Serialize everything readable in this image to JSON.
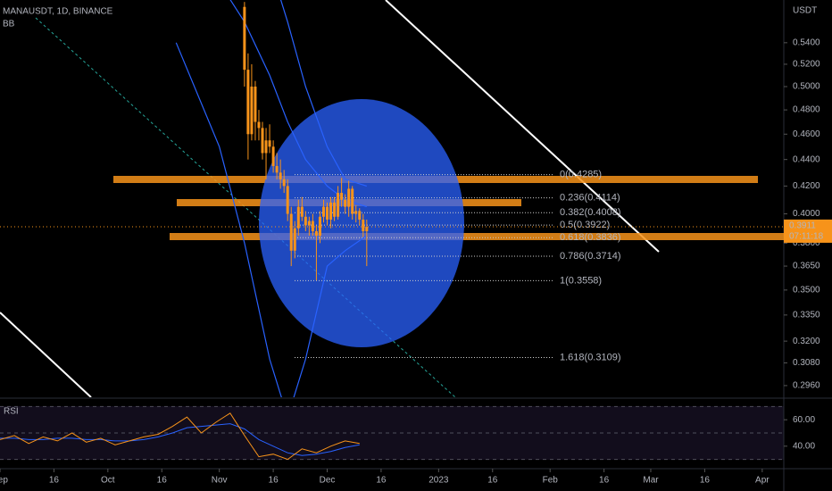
{
  "chart_data": {
    "type": "candlestick",
    "title": "MANAUSDT, 1D, BINANCE",
    "indicator": "BB",
    "currency": "USDT",
    "log_scale": true,
    "grid": false,
    "ylim": [
      0.29,
      0.582
    ],
    "yticks": [
      {
        "value": 0.54,
        "label": "0.5400"
      },
      {
        "value": 0.52,
        "label": "0.5200"
      },
      {
        "value": 0.5,
        "label": "0.5000"
      },
      {
        "value": 0.48,
        "label": "0.4800"
      },
      {
        "value": 0.46,
        "label": "0.4600"
      },
      {
        "value": 0.44,
        "label": "0.4400"
      },
      {
        "value": 0.42,
        "label": "0.4200"
      },
      {
        "value": 0.4,
        "label": "0.4000"
      },
      {
        "value": 0.38,
        "label": "0.3800"
      },
      {
        "value": 0.365,
        "label": "0.3650"
      },
      {
        "value": 0.35,
        "label": "0.3500"
      },
      {
        "value": 0.335,
        "label": "0.3350"
      },
      {
        "value": 0.32,
        "label": "0.3200"
      },
      {
        "value": 0.308,
        "label": "0.3080"
      },
      {
        "value": 0.296,
        "label": "0.2960"
      }
    ],
    "xlim": [
      "2022-09-01",
      "2023-04-07"
    ],
    "xticks": [
      {
        "value": "2022-09-01",
        "label": "Sep"
      },
      {
        "value": "2022-09-16",
        "label": "16"
      },
      {
        "value": "2022-10-01",
        "label": "Oct"
      },
      {
        "value": "2022-10-16",
        "label": "16"
      },
      {
        "value": "2022-11-01",
        "label": "Nov"
      },
      {
        "value": "2022-11-16",
        "label": "16"
      },
      {
        "value": "2022-12-01",
        "label": "Dec"
      },
      {
        "value": "2022-12-16",
        "label": "16"
      },
      {
        "value": "2023-01-01",
        "label": "2023"
      },
      {
        "value": "2023-01-16",
        "label": "16"
      },
      {
        "value": "2023-02-01",
        "label": "Feb"
      },
      {
        "value": "2023-02-16",
        "label": "16"
      },
      {
        "value": "2023-03-01",
        "label": "Mar"
      },
      {
        "value": "2023-03-16",
        "label": "16"
      },
      {
        "value": "2023-04-01",
        "label": "Apr"
      }
    ],
    "candles": {
      "color": "#f7931a",
      "x": [
        "2022-11-08",
        "2022-11-09",
        "2022-11-10",
        "2022-11-11",
        "2022-11-12",
        "2022-11-13",
        "2022-11-14",
        "2022-11-15",
        "2022-11-16",
        "2022-11-17",
        "2022-11-18",
        "2022-11-19",
        "2022-11-20",
        "2022-11-21",
        "2022-11-22",
        "2022-11-23",
        "2022-11-24",
        "2022-11-25",
        "2022-11-26",
        "2022-11-27",
        "2022-11-28",
        "2022-11-29",
        "2022-11-30",
        "2022-12-01",
        "2022-12-02",
        "2022-12-03",
        "2022-12-04",
        "2022-12-05",
        "2022-12-06",
        "2022-12-07",
        "2022-12-08",
        "2022-12-09",
        "2022-12-10",
        "2022-12-11",
        "2022-12-12"
      ],
      "open": [
        0.575,
        0.515,
        0.46,
        0.5,
        0.47,
        0.465,
        0.445,
        0.455,
        0.45,
        0.435,
        0.43,
        0.425,
        0.42,
        0.4,
        0.375,
        0.39,
        0.405,
        0.398,
        0.392,
        0.395,
        0.388,
        0.385,
        0.398,
        0.405,
        0.396,
        0.408,
        0.398,
        0.415,
        0.41,
        0.405,
        0.418,
        0.4,
        0.402,
        0.396,
        0.388
      ],
      "high": [
        0.58,
        0.53,
        0.52,
        0.505,
        0.48,
        0.47,
        0.465,
        0.468,
        0.455,
        0.445,
        0.44,
        0.432,
        0.425,
        0.405,
        0.395,
        0.41,
        0.412,
        0.402,
        0.398,
        0.4,
        0.392,
        0.402,
        0.41,
        0.408,
        0.412,
        0.412,
        0.42,
        0.426,
        0.414,
        0.424,
        0.42,
        0.406,
        0.404,
        0.4,
        0.396
      ],
      "low": [
        0.5,
        0.44,
        0.455,
        0.455,
        0.455,
        0.44,
        0.425,
        0.445,
        0.43,
        0.425,
        0.418,
        0.415,
        0.395,
        0.365,
        0.37,
        0.385,
        0.395,
        0.388,
        0.385,
        0.385,
        0.356,
        0.38,
        0.394,
        0.392,
        0.39,
        0.395,
        0.396,
        0.405,
        0.4,
        0.398,
        0.396,
        0.394,
        0.392,
        0.384,
        0.365
      ],
      "close": [
        0.515,
        0.46,
        0.5,
        0.47,
        0.465,
        0.445,
        0.455,
        0.45,
        0.435,
        0.43,
        0.425,
        0.42,
        0.4,
        0.375,
        0.39,
        0.405,
        0.398,
        0.392,
        0.395,
        0.388,
        0.385,
        0.398,
        0.405,
        0.396,
        0.408,
        0.398,
        0.415,
        0.41,
        0.405,
        0.418,
        0.4,
        0.402,
        0.396,
        0.388,
        0.391
      ]
    },
    "bollinger": {
      "color": "#2962ff",
      "x": [
        "2022-10-20",
        "2022-11-01",
        "2022-11-08",
        "2022-11-15",
        "2022-11-20",
        "2022-11-25",
        "2022-12-01",
        "2022-12-06",
        "2022-12-12"
      ],
      "upper": [
        0.7,
        0.75,
        0.72,
        0.62,
        0.56,
        0.5,
        0.45,
        0.425,
        0.42
      ],
      "basis": [
        0.62,
        0.6,
        0.56,
        0.51,
        0.47,
        0.44,
        0.42,
        0.41,
        0.405
      ],
      "lower": [
        0.54,
        0.45,
        0.38,
        0.31,
        0.28,
        0.31,
        0.365,
        0.375,
        0.385
      ]
    },
    "fibonacci": {
      "levels": [
        {
          "value": 0.4285,
          "label": "0(0.4285)"
        },
        {
          "value": 0.4114,
          "label": "0.236(0.4114)"
        },
        {
          "value": 0.4008,
          "label": "0.382(0.4008)"
        },
        {
          "value": 0.3922,
          "label": "0.5(0.3922)"
        },
        {
          "value": 0.3836,
          "label": "0.618(0.3836)"
        },
        {
          "value": 0.3714,
          "label": "0.786(0.3714)"
        },
        {
          "value": 0.3558,
          "label": "1(0.3558)"
        },
        {
          "value": 0.3109,
          "label": "1.618(0.3109)"
        }
      ]
    },
    "last_price": 0.3911,
    "countdown": "07:11:18",
    "rsi": {
      "title": "RSI",
      "color": "#f7931a",
      "ma_color": "#2962ff",
      "ylim": [
        25,
        77
      ],
      "yticks": [
        {
          "value": 60,
          "label": "60.00"
        },
        {
          "value": 40,
          "label": "40.00"
        }
      ],
      "bands": [
        70,
        50,
        30
      ],
      "x": [
        "2022-09-01",
        "2022-09-05",
        "2022-09-09",
        "2022-09-13",
        "2022-09-17",
        "2022-09-21",
        "2022-09-25",
        "2022-09-29",
        "2022-10-03",
        "2022-10-07",
        "2022-10-11",
        "2022-10-15",
        "2022-10-19",
        "2022-10-23",
        "2022-10-27",
        "2022-10-31",
        "2022-11-04",
        "2022-11-08",
        "2022-11-12",
        "2022-11-16",
        "2022-11-20",
        "2022-11-24",
        "2022-11-28",
        "2022-12-02",
        "2022-12-06",
        "2022-12-10"
      ],
      "values": [
        45,
        48,
        42,
        47,
        44,
        50,
        43,
        46,
        41,
        44,
        47,
        49,
        55,
        62,
        50,
        58,
        65,
        48,
        32,
        34,
        30,
        38,
        35,
        40,
        44,
        42
      ],
      "ma": [
        46,
        46,
        45,
        45,
        46,
        46,
        45,
        45,
        44,
        44,
        45,
        47,
        50,
        54,
        55,
        56,
        57,
        53,
        45,
        40,
        35,
        33,
        34,
        36,
        39,
        41
      ]
    }
  }
}
